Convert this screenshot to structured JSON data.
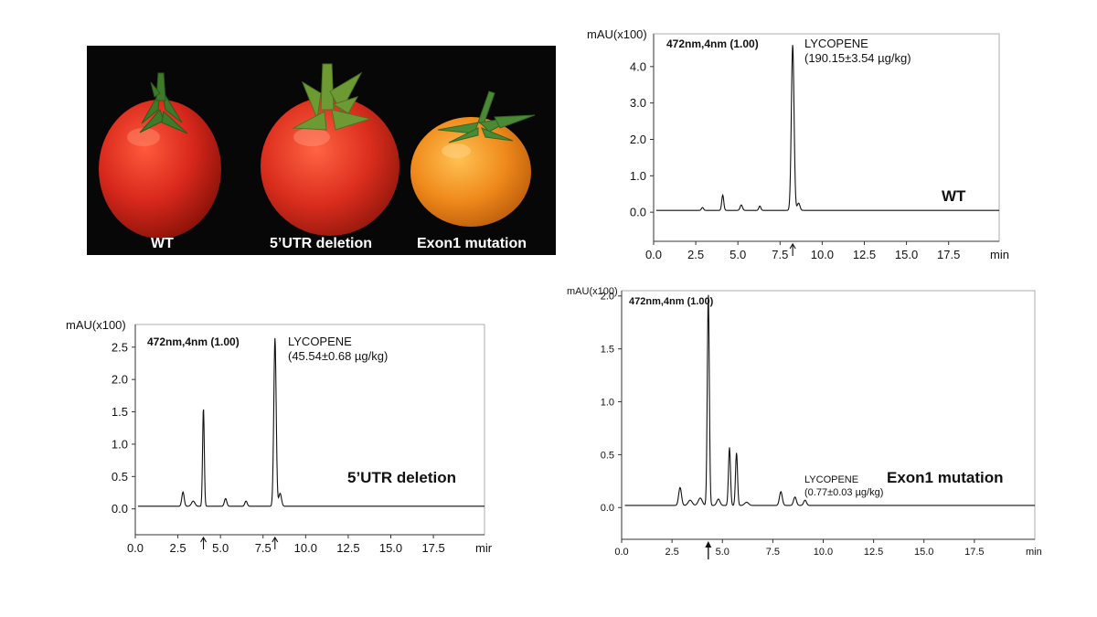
{
  "photo": {
    "labels": [
      "WT",
      "5’UTR deletion",
      "Exon1 mutation"
    ]
  },
  "colors": {
    "photo_background": "#070707",
    "tomato_red": "#d8281c",
    "tomato_orange": "#f08a1c",
    "calyx_green": "#3e7a2a",
    "trace": "#111111"
  },
  "chart_data": [
    {
      "type": "line",
      "title": "",
      "sample_label": "WT",
      "ylabel": "mAU(x100)",
      "xlabel": "min",
      "detection": "472nm,4nm (1.00)",
      "xlim": [
        0,
        20.5
      ],
      "ylim": [
        -0.8,
        4.9
      ],
      "xticks": [
        "0.0",
        "2.5",
        "5.0",
        "7.5",
        "10.0",
        "12.5",
        "15.0",
        "17.5"
      ],
      "xtick_values": [
        0,
        2.5,
        5,
        7.5,
        10,
        12.5,
        15,
        17.5
      ],
      "yticks": [
        "0.0",
        "1.0",
        "2.0",
        "3.0",
        "4.0"
      ],
      "ytick_values": [
        0,
        1,
        2,
        3,
        4
      ],
      "baseline": 0.05,
      "peaks": [
        [
          2.9,
          0.08,
          0.06
        ],
        [
          4.1,
          0.42,
          0.06
        ],
        [
          5.2,
          0.15,
          0.07
        ],
        [
          6.3,
          0.12,
          0.06
        ],
        [
          8.25,
          4.55,
          0.08
        ],
        [
          8.6,
          0.2,
          0.08
        ]
      ],
      "annotation": {
        "name": "LYCOPENE",
        "value": "(190.15±3.54 µg/kg)"
      },
      "arrows": [
        8.25
      ]
    },
    {
      "type": "line",
      "title": "",
      "sample_label": "5’UTR deletion",
      "ylabel": "mAU(x100)",
      "xlabel": "mir",
      "detection": "472nm,4nm (1.00)",
      "xlim": [
        0,
        20.5
      ],
      "ylim": [
        -0.4,
        2.85
      ],
      "xticks": [
        "0.0",
        "2.5",
        "5.0",
        "7.5",
        "10.0",
        "12.5",
        "15.0",
        "17.5"
      ],
      "xtick_values": [
        0,
        2.5,
        5,
        7.5,
        10,
        12.5,
        15,
        17.5
      ],
      "yticks": [
        "0.0",
        "0.5",
        "1.0",
        "1.5",
        "2.0",
        "2.5"
      ],
      "ytick_values": [
        0,
        0.5,
        1,
        1.5,
        2,
        2.5
      ],
      "baseline": 0.04,
      "peaks": [
        [
          2.8,
          0.22,
          0.07
        ],
        [
          3.4,
          0.08,
          0.1
        ],
        [
          4.0,
          1.52,
          0.05
        ],
        [
          5.3,
          0.12,
          0.07
        ],
        [
          6.5,
          0.08,
          0.07
        ],
        [
          8.2,
          2.6,
          0.07
        ],
        [
          8.5,
          0.2,
          0.08
        ]
      ],
      "annotation": {
        "name": "LYCOPENE",
        "value": "(45.54±0.68 µg/kg)"
      },
      "arrows": [
        4.0,
        8.2
      ]
    },
    {
      "type": "line",
      "title": "",
      "sample_label": "Exon1 mutation",
      "ylabel": "mAU(x100)",
      "xlabel": "min",
      "detection": "472nm,4nm (1.00)",
      "xlim": [
        0,
        20.5
      ],
      "ylim": [
        -0.3,
        2.05
      ],
      "xticks": [
        "0.0",
        "2.5",
        "5.0",
        "7.5",
        "10.0",
        "12.5",
        "15.0",
        "17.5"
      ],
      "xtick_values": [
        0,
        2.5,
        5,
        7.5,
        10,
        12.5,
        15,
        17.5
      ],
      "yticks": [
        "0.0",
        "0.5",
        "1.0",
        "1.5",
        "2.0"
      ],
      "ytick_values": [
        0,
        0.5,
        1,
        1.5,
        2
      ],
      "baseline": 0.02,
      "peaks": [
        [
          2.9,
          0.17,
          0.07
        ],
        [
          3.4,
          0.05,
          0.1
        ],
        [
          3.9,
          0.07,
          0.1
        ],
        [
          4.3,
          2.0,
          0.05
        ],
        [
          4.8,
          0.06,
          0.08
        ],
        [
          5.35,
          0.55,
          0.05
        ],
        [
          5.7,
          0.5,
          0.05
        ],
        [
          6.2,
          0.03,
          0.1
        ],
        [
          7.9,
          0.13,
          0.07
        ],
        [
          8.6,
          0.08,
          0.07
        ],
        [
          9.1,
          0.05,
          0.07
        ]
      ],
      "annotation": {
        "name": "LYCOPENE",
        "value": "(0.77±0.03 µg/kg)"
      },
      "arrows": [
        4.3
      ]
    }
  ]
}
